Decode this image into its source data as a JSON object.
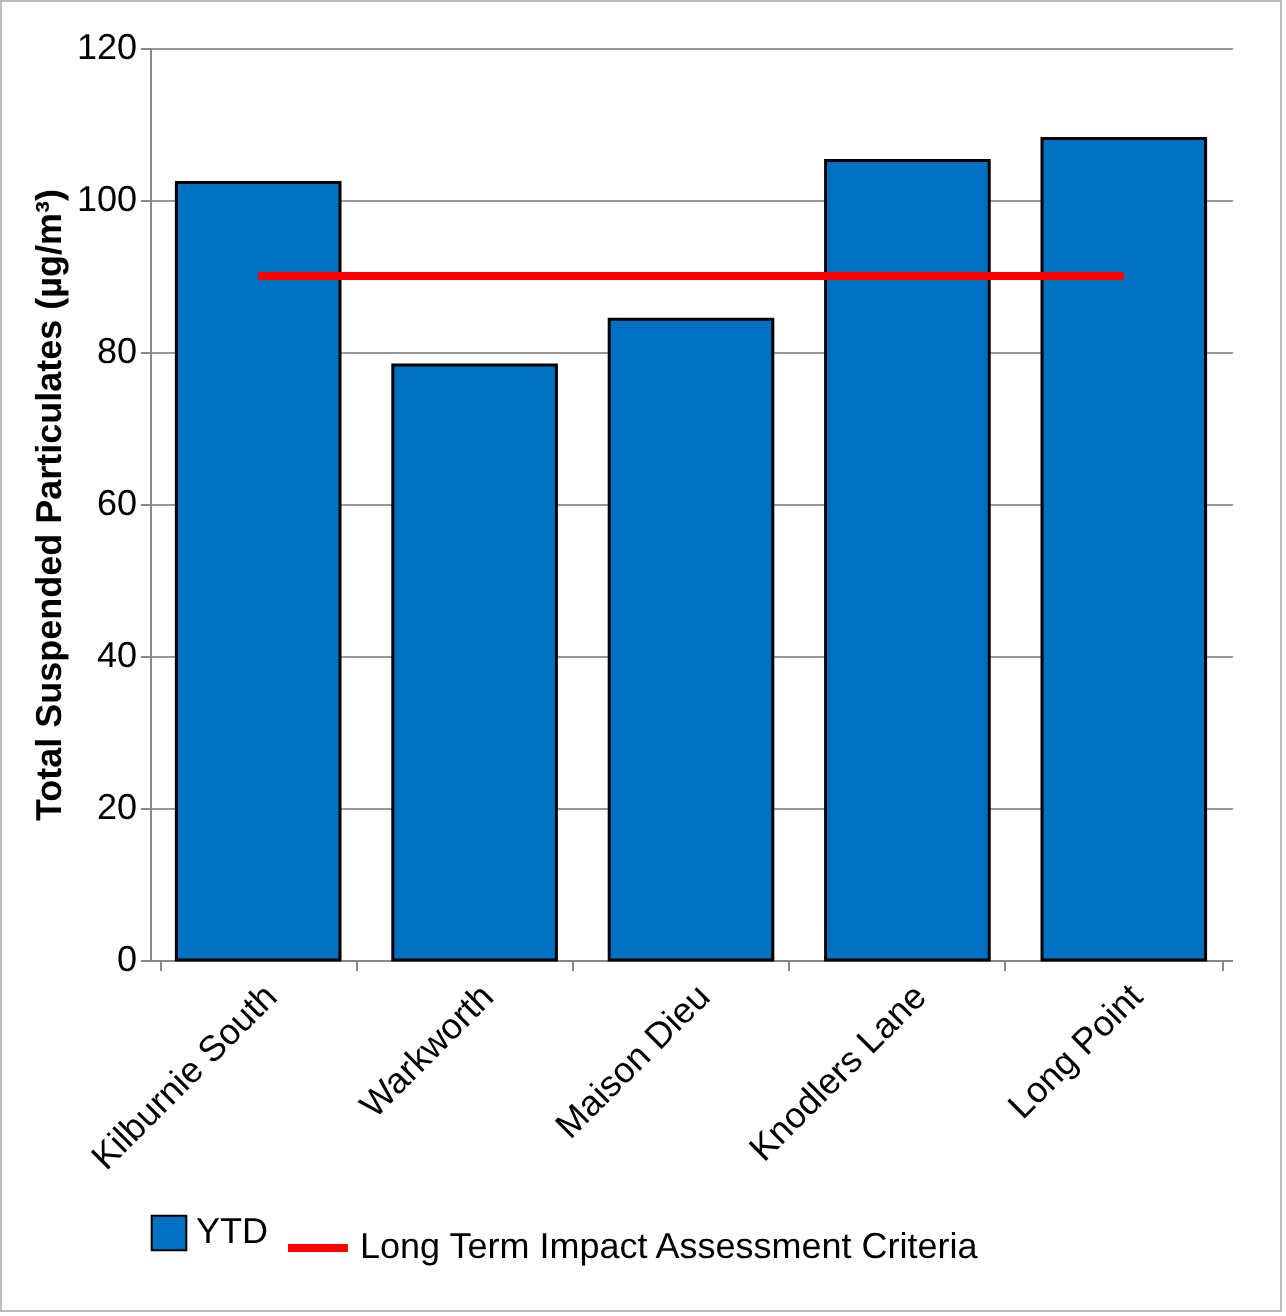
{
  "chart_data": {
    "type": "bar",
    "ylabel": "Total Suspended Particulates (µg/m³)",
    "categories": [
      "Kilburnie South",
      "Warkworth",
      "Maison Dieu",
      "Knodlers Lane",
      "Long Point"
    ],
    "series": [
      {
        "name": "YTD",
        "color": "#0070c0",
        "values": [
          102.3,
          78.3,
          84.3,
          105.2,
          108.1
        ]
      },
      {
        "name": "Long Term Impact Assessment Criteria",
        "type": "line",
        "color": "#ff0000",
        "values": [
          90,
          90,
          90,
          90,
          90
        ]
      }
    ],
    "ylim": [
      0,
      120
    ],
    "yticks": [
      0,
      20,
      40,
      60,
      80,
      100,
      120
    ],
    "grid": "y",
    "legend": "bottom"
  }
}
